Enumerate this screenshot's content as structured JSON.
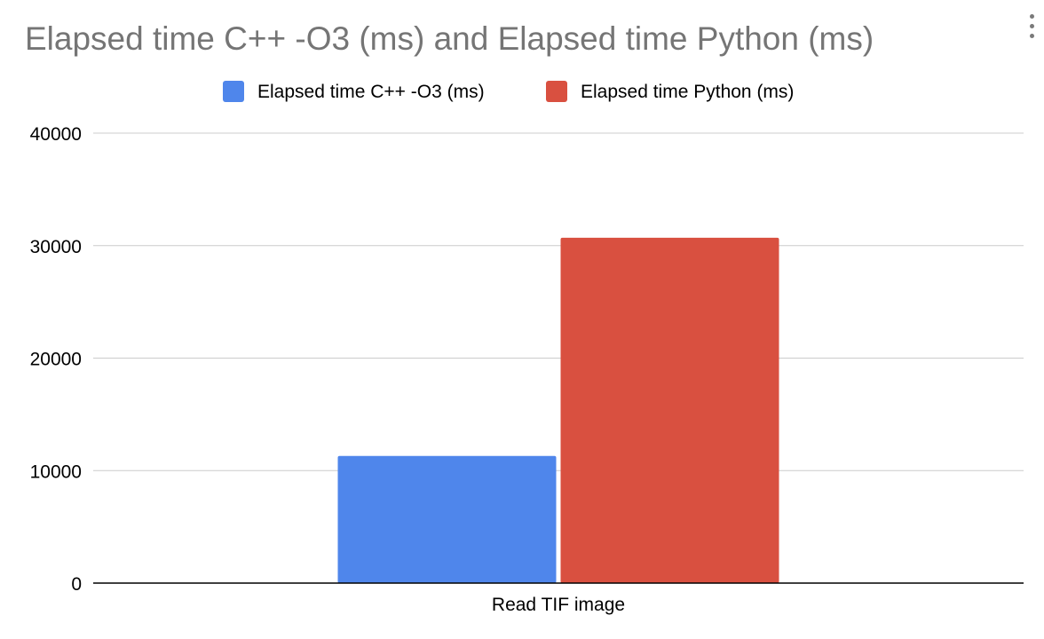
{
  "chart_data": {
    "type": "bar",
    "title": "Elapsed time C++ -O3 (ms) and Elapsed time Python (ms)",
    "categories": [
      "Read TIF image"
    ],
    "series": [
      {
        "name": "Elapsed time C++ -O3 (ms)",
        "values": [
          11300
        ],
        "color": "#4f86eb"
      },
      {
        "name": "Elapsed time Python (ms)",
        "values": [
          30700
        ],
        "color": "#d95040"
      }
    ],
    "xlabel": "",
    "ylabel": "",
    "ylim": [
      0,
      40000
    ],
    "yticks": [
      "0",
      "10000",
      "20000",
      "30000",
      "40000"
    ],
    "grid": true,
    "legend_position": "top"
  },
  "menu_icon": "vertical-dots-icon",
  "colors": {
    "title": "#757575",
    "grid": "#cccccc",
    "axis": "#000000",
    "text": "#000000"
  }
}
